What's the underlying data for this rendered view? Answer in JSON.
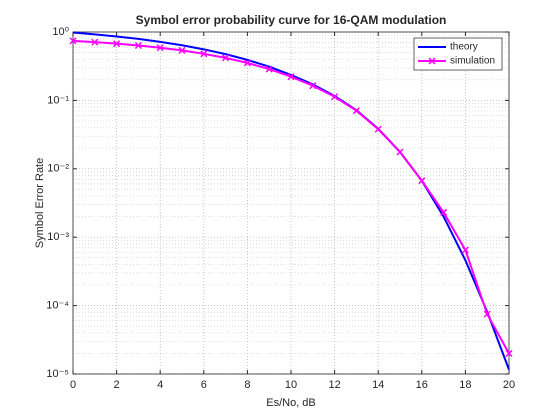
{
  "chart_data": {
    "type": "line",
    "title": "Symbol error probability curve for 16-QAM modulation",
    "xlabel": "Es/No, dB",
    "ylabel": "Symbol Error Rate",
    "x": [
      0,
      1,
      2,
      3,
      4,
      5,
      6,
      7,
      8,
      9,
      10,
      11,
      12,
      13,
      14,
      15,
      16,
      17,
      18,
      19,
      20
    ],
    "series": [
      {
        "name": "theory",
        "color": "#0000ff",
        "marker": "none",
        "values": [
          0.982,
          0.924,
          0.86,
          0.792,
          0.718,
          0.64,
          0.558,
          0.475,
          0.391,
          0.311,
          0.236,
          0.171,
          0.116,
          0.072,
          0.0385,
          0.0177,
          0.0067,
          0.002,
          0.00046,
          8.1e-05,
          1.16e-05
        ]
      },
      {
        "name": "simulation",
        "color": "#ff00ff",
        "marker": "x",
        "values": [
          0.741,
          0.711,
          0.675,
          0.635,
          0.589,
          0.538,
          0.48,
          0.419,
          0.353,
          0.287,
          0.222,
          0.164,
          0.113,
          0.0707,
          0.038,
          0.0176,
          0.0067,
          0.0023,
          0.00065,
          7.5e-05,
          2e-05
        ]
      }
    ],
    "xlim": [
      0,
      20
    ],
    "xticks": [
      0,
      2,
      4,
      6,
      8,
      10,
      12,
      14,
      16,
      18,
      20
    ],
    "ylim": [
      1e-05,
      1
    ],
    "log_y": true,
    "yticks": [
      {
        "value": 1e-05,
        "label": "10⁻⁵"
      },
      {
        "value": 0.0001,
        "label": "10⁻⁴"
      },
      {
        "value": 0.001,
        "label": "10⁻³"
      },
      {
        "value": 0.01,
        "label": "10⁻²"
      },
      {
        "value": 0.1,
        "label": "10⁻¹"
      },
      {
        "value": 1,
        "label": "10⁰"
      }
    ],
    "grid": true,
    "minor_grid": true,
    "legend": "upper right"
  }
}
